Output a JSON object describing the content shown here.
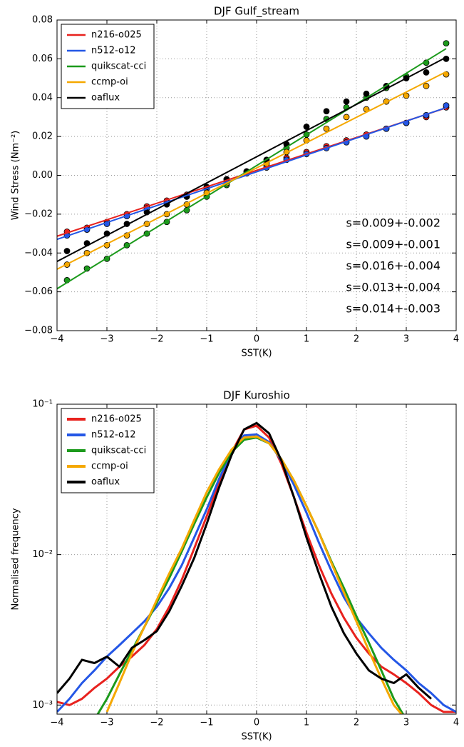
{
  "chart_data": [
    {
      "type": "scatter",
      "title": "DJF Gulf_stream",
      "x_label": "SST(K)",
      "y_label": "Wind Stress (Nm⁻²)",
      "x": [
        -3.8,
        -3.4,
        -3.0,
        -2.6,
        -2.2,
        -1.8,
        -1.4,
        -1.0,
        -0.6,
        -0.2,
        0.2,
        0.6,
        1.0,
        1.4,
        1.8,
        2.2,
        2.6,
        3.0,
        3.4,
        3.8
      ],
      "series": [
        {
          "name": "n216-o025",
          "color": "#e8221e",
          "values": [
            -0.029,
            -0.027,
            -0.024,
            -0.02,
            -0.016,
            -0.013,
            -0.01,
            -0.006,
            -0.002,
            0.002,
            0.005,
            0.009,
            0.012,
            0.015,
            0.018,
            0.021,
            0.024,
            0.027,
            0.03,
            0.035
          ]
        },
        {
          "name": "n512-o12",
          "color": "#2457e6",
          "values": [
            -0.031,
            -0.028,
            -0.025,
            -0.021,
            -0.017,
            -0.014,
            -0.011,
            -0.007,
            -0.003,
            0.001,
            0.004,
            0.008,
            0.011,
            0.014,
            0.017,
            0.02,
            0.024,
            0.027,
            0.031,
            0.036
          ]
        },
        {
          "name": "quikscat-cci",
          "color": "#1c9a1c",
          "values": [
            -0.054,
            -0.048,
            -0.043,
            -0.036,
            -0.03,
            -0.024,
            -0.018,
            -0.011,
            -0.005,
            0.001,
            0.007,
            0.014,
            0.021,
            0.029,
            0.035,
            0.04,
            0.045,
            0.051,
            0.058,
            0.068
          ]
        },
        {
          "name": "ccmp-oi",
          "color": "#f5a800",
          "values": [
            -0.046,
            -0.04,
            -0.036,
            -0.031,
            -0.025,
            -0.02,
            -0.015,
            -0.009,
            -0.004,
            0.001,
            0.006,
            0.012,
            0.018,
            0.024,
            0.03,
            0.034,
            0.038,
            0.041,
            0.046,
            0.052
          ]
        },
        {
          "name": "oaflux",
          "color": "#000000",
          "values": [
            -0.039,
            -0.035,
            -0.03,
            -0.025,
            -0.019,
            -0.015,
            -0.011,
            -0.006,
            -0.002,
            0.002,
            0.008,
            0.016,
            0.025,
            0.033,
            0.038,
            0.042,
            0.046,
            0.05,
            0.053,
            0.06
          ]
        }
      ],
      "annotations": [
        {
          "text": "s=0.009+-0.002",
          "color": "#e8221e"
        },
        {
          "text": "s=0.009+-0.001",
          "color": "#2457e6"
        },
        {
          "text": "s=0.016+-0.004",
          "color": "#1c9a1c"
        },
        {
          "text": "s=0.013+-0.004",
          "color": "#f5a800"
        },
        {
          "text": "s=0.014+-0.003",
          "color": "#000000"
        }
      ],
      "xlim": [
        -4,
        4
      ],
      "xticks": [
        {
          "value": -4,
          "label": "−4"
        },
        {
          "value": -3,
          "label": "−3"
        },
        {
          "value": -2,
          "label": "−2"
        },
        {
          "value": -1,
          "label": "−1"
        },
        0,
        1,
        2,
        3,
        4
      ],
      "ylim": [
        -0.08,
        0.08
      ],
      "yticks": [
        {
          "value": -0.08,
          "label": "−0.08"
        },
        {
          "value": -0.06,
          "label": "−0.06"
        },
        {
          "value": -0.04,
          "label": "−0.04"
        },
        {
          "value": -0.02,
          "label": "−0.02"
        },
        {
          "value": 0,
          "label": "0.00"
        },
        0.02,
        0.04,
        0.06,
        0.08
      ],
      "grid": true,
      "legend": "upper left"
    },
    {
      "type": "line",
      "title": "DJF Kuroshio",
      "x_label": "SST(K)",
      "y_label": "Normalised frequency",
      "y_scale": "log",
      "x": [
        -4,
        -3.75,
        -3.5,
        -3.25,
        -3,
        -2.75,
        -2.5,
        -2.25,
        -2,
        -1.75,
        -1.5,
        -1.25,
        -1,
        -0.75,
        -0.5,
        -0.25,
        0,
        0.25,
        0.5,
        0.75,
        1,
        1.25,
        1.5,
        1.75,
        2,
        2.25,
        2.5,
        2.75,
        3,
        3.25,
        3.5,
        3.75,
        4
      ],
      "series": [
        {
          "name": "n216-o025",
          "color": "#e8221e",
          "values": [
            0.00105,
            0.001,
            0.0011,
            0.0013,
            0.0015,
            0.0018,
            0.0021,
            0.0025,
            0.0032,
            0.0045,
            0.0068,
            0.011,
            0.018,
            0.03,
            0.048,
            0.068,
            0.072,
            0.06,
            0.04,
            0.024,
            0.014,
            0.0085,
            0.0055,
            0.0038,
            0.0028,
            0.0022,
            0.0018,
            0.0016,
            0.0014,
            0.0012,
            0.001,
            0.0009,
            0.0009
          ]
        },
        {
          "name": "n512-o12",
          "color": "#2457e6",
          "values": [
            0.0009,
            0.0011,
            0.0014,
            0.0017,
            0.0021,
            0.0025,
            0.003,
            0.0036,
            0.0045,
            0.006,
            0.0085,
            0.013,
            0.02,
            0.032,
            0.048,
            0.062,
            0.063,
            0.056,
            0.042,
            0.029,
            0.019,
            0.012,
            0.0078,
            0.0052,
            0.0038,
            0.003,
            0.0024,
            0.002,
            0.0017,
            0.0014,
            0.0012,
            0.001,
            0.0009
          ]
        },
        {
          "name": "quikscat-cci",
          "color": "#1c9a1c",
          "values": [
            null,
            null,
            null,
            0.0008,
            0.0011,
            0.0016,
            0.0023,
            0.0033,
            0.0048,
            0.007,
            0.0105,
            0.016,
            0.024,
            0.035,
            0.048,
            0.058,
            0.06,
            0.055,
            0.043,
            0.031,
            0.021,
            0.014,
            0.009,
            0.006,
            0.0039,
            0.0026,
            0.0017,
            0.0011,
            0.0008,
            null,
            null,
            null,
            null
          ]
        },
        {
          "name": "ccmp-oi",
          "color": "#f5a800",
          "values": [
            null,
            null,
            null,
            null,
            0.0009,
            0.0014,
            0.0022,
            0.0033,
            0.005,
            0.0075,
            0.011,
            0.017,
            0.026,
            0.037,
            0.05,
            0.06,
            0.061,
            0.055,
            0.043,
            0.031,
            0.021,
            0.014,
            0.0088,
            0.0056,
            0.0036,
            0.0023,
            0.0015,
            0.001,
            0.0008,
            null,
            null,
            null,
            null
          ]
        },
        {
          "name": "oaflux",
          "color": "#000000",
          "values": [
            0.0012,
            0.0015,
            0.002,
            0.0019,
            0.0021,
            0.0018,
            0.0024,
            0.0027,
            0.0031,
            0.0042,
            0.0062,
            0.0095,
            0.016,
            0.028,
            0.046,
            0.068,
            0.075,
            0.064,
            0.042,
            0.024,
            0.013,
            0.0075,
            0.0045,
            0.003,
            0.0022,
            0.0017,
            0.0015,
            0.0014,
            0.0016,
            0.0013,
            0.0011,
            null,
            null
          ]
        }
      ],
      "xlim": [
        -4,
        4
      ],
      "xticks": [
        {
          "value": -4,
          "label": "−4"
        },
        {
          "value": -3,
          "label": "−3"
        },
        {
          "value": -2,
          "label": "−2"
        },
        {
          "value": -1,
          "label": "−1"
        },
        0,
        1,
        2,
        3,
        4
      ],
      "ylim": [
        0.00087,
        0.1
      ],
      "yticks": [
        {
          "value": 0.001,
          "label": "10⁻³"
        },
        {
          "value": 0.01,
          "label": "10⁻²"
        },
        {
          "value": 0.1,
          "label": "10⁻¹"
        }
      ],
      "grid": true,
      "legend": "upper left"
    }
  ]
}
